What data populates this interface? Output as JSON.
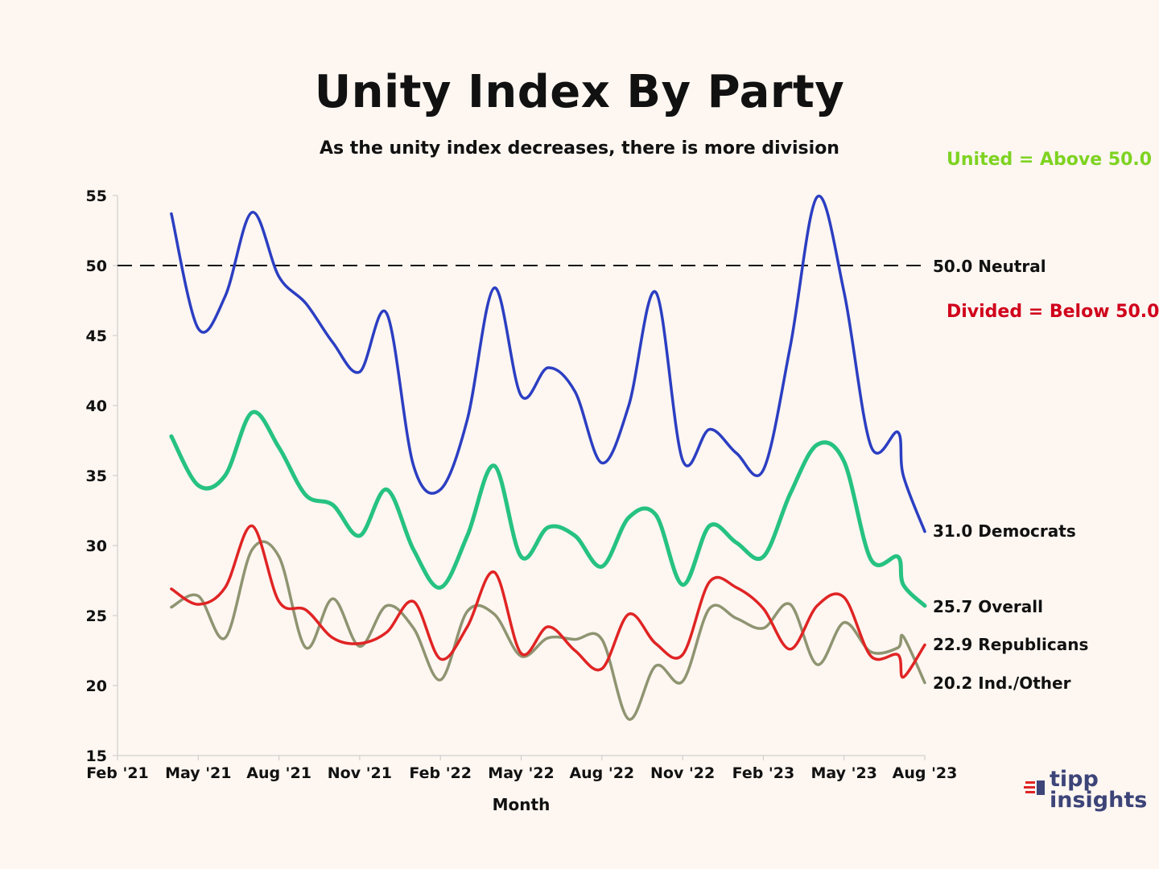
{
  "chart_data": {
    "type": "line",
    "title": "Unity Index By Party",
    "subtitle": "As the unity index decreases, there is more division",
    "xlabel": "Month",
    "ylabel": "",
    "ylim": [
      15,
      55
    ],
    "yticks": [
      15,
      20,
      25,
      30,
      35,
      40,
      45,
      50,
      55
    ],
    "xticks": [
      {
        "label": "Feb '21",
        "t": 0
      },
      {
        "label": "May '21",
        "t": 3
      },
      {
        "label": "Aug '21",
        "t": 6
      },
      {
        "label": "Nov '21",
        "t": 9
      },
      {
        "label": "Feb '22",
        "t": 12
      },
      {
        "label": "May '22",
        "t": 15
      },
      {
        "label": "Aug '22",
        "t": 18
      },
      {
        "label": "Nov '22",
        "t": 21
      },
      {
        "label": "Feb '23",
        "t": 24
      },
      {
        "label": "May '23",
        "t": 27
      },
      {
        "label": "Aug '23",
        "t": 30
      }
    ],
    "reference_line": {
      "value": 50.0,
      "label": "50.0 Neutral"
    },
    "annotations": [
      {
        "text": "United = Above 50.0",
        "color": "#7ed321"
      },
      {
        "text": "Divided = Below 50.0",
        "color": "#d0021b"
      }
    ],
    "series": [
      {
        "name": "Democrats",
        "end_label": "31.0 Democrats",
        "color": "#2b3ec2",
        "points": [
          [
            2,
            53.7
          ],
          [
            3,
            45.5
          ],
          [
            4,
            47.8
          ],
          [
            5,
            53.8
          ],
          [
            6,
            49.2
          ],
          [
            7,
            47.3
          ],
          [
            8,
            44.5
          ],
          [
            9,
            42.4
          ],
          [
            10,
            46.6
          ],
          [
            11,
            35.7
          ],
          [
            12,
            34.0
          ],
          [
            13,
            39.0
          ],
          [
            14,
            48.4
          ],
          [
            15,
            40.7
          ],
          [
            16,
            42.7
          ],
          [
            17,
            41.0
          ],
          [
            18,
            35.9
          ],
          [
            19,
            40.0
          ],
          [
            20,
            48.1
          ],
          [
            21,
            36.1
          ],
          [
            22,
            38.3
          ],
          [
            23,
            36.6
          ],
          [
            24,
            35.4
          ],
          [
            25,
            44.2
          ],
          [
            26,
            54.9
          ],
          [
            27,
            48.1
          ],
          [
            28,
            37.1
          ],
          [
            29,
            38.1
          ],
          [
            29.2,
            35.0
          ],
          [
            30,
            31.0
          ]
        ]
      },
      {
        "name": "Overall",
        "end_label": "25.7 Overall",
        "color": "#26c281",
        "points": [
          [
            2,
            37.8
          ],
          [
            3,
            34.3
          ],
          [
            4,
            35.0
          ],
          [
            5,
            39.5
          ],
          [
            6,
            37.0
          ],
          [
            7,
            33.6
          ],
          [
            8,
            32.9
          ],
          [
            9,
            30.7
          ],
          [
            10,
            34.0
          ],
          [
            11,
            29.7
          ],
          [
            12,
            27.0
          ],
          [
            13,
            30.7
          ],
          [
            14,
            35.7
          ],
          [
            15,
            29.2
          ],
          [
            16,
            31.3
          ],
          [
            17,
            30.7
          ],
          [
            18,
            28.5
          ],
          [
            19,
            32.0
          ],
          [
            20,
            32.2
          ],
          [
            21,
            27.2
          ],
          [
            22,
            31.4
          ],
          [
            23,
            30.2
          ],
          [
            24,
            29.2
          ],
          [
            25,
            33.7
          ],
          [
            26,
            37.2
          ],
          [
            27,
            36.0
          ],
          [
            28,
            29.0
          ],
          [
            29,
            29.2
          ],
          [
            29.2,
            27.2
          ],
          [
            30,
            25.7
          ]
        ]
      },
      {
        "name": "Republicans",
        "end_label": "22.9 Republicans",
        "color": "#e02424",
        "points": [
          [
            2,
            26.9
          ],
          [
            3,
            25.8
          ],
          [
            4,
            27.0
          ],
          [
            5,
            31.4
          ],
          [
            6,
            26.0
          ],
          [
            7,
            25.4
          ],
          [
            8,
            23.4
          ],
          [
            9,
            23.0
          ],
          [
            10,
            23.8
          ],
          [
            11,
            26.0
          ],
          [
            12,
            21.9
          ],
          [
            13,
            24.2
          ],
          [
            14,
            28.1
          ],
          [
            15,
            22.3
          ],
          [
            16,
            24.2
          ],
          [
            17,
            22.5
          ],
          [
            18,
            21.2
          ],
          [
            19,
            25.1
          ],
          [
            20,
            23.0
          ],
          [
            21,
            22.2
          ],
          [
            22,
            27.4
          ],
          [
            23,
            27.0
          ],
          [
            24,
            25.5
          ],
          [
            25,
            22.6
          ],
          [
            26,
            25.7
          ],
          [
            27,
            26.3
          ],
          [
            28,
            22.1
          ],
          [
            29,
            22.2
          ],
          [
            29.2,
            20.6
          ],
          [
            30,
            22.9
          ]
        ]
      },
      {
        "name": "Ind./Other",
        "end_label": "20.2 Ind./Other",
        "color": "#8f9471",
        "points": [
          [
            2,
            25.6
          ],
          [
            3,
            26.4
          ],
          [
            4,
            23.4
          ],
          [
            5,
            29.7
          ],
          [
            6,
            29.2
          ],
          [
            7,
            22.7
          ],
          [
            8,
            26.2
          ],
          [
            9,
            22.8
          ],
          [
            10,
            25.7
          ],
          [
            11,
            24.1
          ],
          [
            12,
            20.4
          ],
          [
            13,
            25.3
          ],
          [
            14,
            25.1
          ],
          [
            15,
            22.1
          ],
          [
            16,
            23.4
          ],
          [
            17,
            23.3
          ],
          [
            18,
            23.3
          ],
          [
            19,
            17.6
          ],
          [
            20,
            21.4
          ],
          [
            21,
            20.3
          ],
          [
            22,
            25.5
          ],
          [
            23,
            24.8
          ],
          [
            24,
            24.1
          ],
          [
            25,
            25.8
          ],
          [
            26,
            21.5
          ],
          [
            27,
            24.5
          ],
          [
            28,
            22.4
          ],
          [
            29,
            22.7
          ],
          [
            29.2,
            23.5
          ],
          [
            30,
            20.2
          ]
        ]
      }
    ]
  },
  "logo": {
    "line1": "tipp",
    "line2": "insights"
  }
}
